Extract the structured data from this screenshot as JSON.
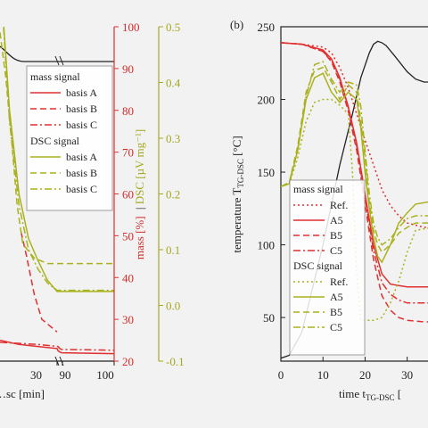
{
  "colors": {
    "black": "#222222",
    "red": "#e03030",
    "olive": "#a9b21c",
    "olive_axis": "#a4a820",
    "background": "#f2f2f2"
  },
  "chart_data": [
    {
      "type": "line",
      "panel": "left",
      "xlabel": "…sc [min]",
      "x_ticks": [
        "30",
        "90",
        "100"
      ],
      "mass_axis": {
        "ylabel": "mass [%]",
        "ylim": [
          20,
          100
        ],
        "ticks": [
          "100",
          "90",
          "80",
          "70",
          "60",
          "50",
          "40",
          "30",
          "20"
        ]
      },
      "dsc_axis": {
        "ylabel": "DSC [µV mg⁻¹]",
        "ylim": [
          -0.1,
          0.5
        ],
        "ticks": [
          "0.5",
          "0.4",
          "0.3",
          "0.2",
          "0.1",
          "0.0",
          "-0.1"
        ]
      },
      "legend": {
        "groups": [
          {
            "title": "mass signal",
            "items": [
              "basis A",
              "basis B",
              "basis C"
            ]
          },
          {
            "title": "DSC signal",
            "items": [
              "basis A",
              "basis B",
              "basis C"
            ]
          }
        ]
      },
      "series": [
        {
          "name": "basis A",
          "signal": "mass",
          "x": [
            0,
            10,
            20,
            30,
            40,
            60,
            80,
            100
          ],
          "y": [
            25,
            24,
            23.5,
            23,
            22.5,
            22.2,
            22,
            21.8
          ]
        },
        {
          "name": "basis B",
          "signal": "mass",
          "x": [
            11,
            14,
            18,
            22,
            30
          ],
          "y": [
            51,
            45,
            36,
            30,
            27
          ]
        },
        {
          "name": "basis C",
          "signal": "mass",
          "x": [
            0,
            20,
            40,
            60,
            80,
            100
          ],
          "y": [
            24.5,
            24,
            23.5,
            23,
            22.8,
            22.6
          ]
        },
        {
          "name": "basis A",
          "signal": "DSC",
          "x": [
            0,
            5,
            10,
            15,
            20,
            25,
            30,
            50,
            80,
            100
          ],
          "y": [
            0.6,
            0.35,
            0.2,
            0.12,
            0.08,
            0.045,
            0.025,
            0.025,
            0.025,
            0.025
          ]
        },
        {
          "name": "basis B",
          "signal": "DSC",
          "x": [
            0,
            3,
            6,
            9,
            12,
            18,
            25,
            40,
            100
          ],
          "y": [
            0.49,
            0.41,
            0.3,
            0.18,
            0.11,
            0.085,
            0.075,
            0.075,
            0.075
          ]
        },
        {
          "name": "basis C",
          "signal": "DSC",
          "x": [
            0,
            5,
            10,
            15,
            20,
            25,
            30,
            50,
            100
          ],
          "y": [
            0.6,
            0.33,
            0.18,
            0.1,
            0.065,
            0.04,
            0.027,
            0.027,
            0.027
          ]
        }
      ]
    },
    {
      "type": "line",
      "panel": "right",
      "panel_label": "(b)",
      "xlabel": "time t",
      "xlabel_sub": "TG-DSC",
      "xlabel_tail": " [",
      "ylabel": "temperature T",
      "ylabel_sub": "TG-DSC",
      "ylabel_tail": " [°C]",
      "x_ticks": [
        "0",
        "10",
        "20",
        "30"
      ],
      "xlim": [
        0,
        36
      ],
      "y_ticks": [
        "250",
        "200",
        "150",
        "100",
        "50"
      ],
      "ylim": [
        20,
        250
      ],
      "legend": {
        "groups": [
          {
            "title": "mass signal",
            "items": [
              "Ref.",
              "A5",
              "B5",
              "C5"
            ]
          },
          {
            "title": "DSC signal",
            "items": [
              "Ref.",
              "A5",
              "B5",
              "C5"
            ]
          }
        ]
      },
      "series": [
        {
          "name": "temperature",
          "x": [
            0,
            2,
            5,
            10,
            14,
            17,
            19,
            21,
            22,
            23,
            24,
            25,
            27,
            30,
            32,
            34,
            36
          ],
          "y": [
            22,
            24,
            40,
            100,
            155,
            190,
            215,
            232,
            238,
            240,
            239,
            237,
            230,
            219,
            214,
            212,
            212
          ]
        },
        {
          "name": "Ref.",
          "signal": "mass",
          "x": [
            0,
            5,
            10,
            12,
            14,
            16,
            18,
            20,
            22,
            24,
            26,
            28,
            30,
            34,
            36
          ],
          "y": [
            239,
            238,
            236,
            232,
            222,
            208,
            190,
            172,
            155,
            138,
            127,
            120,
            115,
            112,
            112
          ]
        },
        {
          "name": "A5",
          "signal": "mass",
          "x": [
            0,
            5,
            10,
            12,
            14,
            16,
            18,
            20,
            22,
            24,
            26,
            28,
            30,
            34,
            36
          ],
          "y": [
            239,
            238,
            234,
            228,
            215,
            195,
            170,
            135,
            100,
            80,
            73,
            72,
            71,
            71,
            71
          ]
        },
        {
          "name": "B5",
          "signal": "mass",
          "x": [
            0,
            5,
            10,
            12,
            14,
            16,
            18,
            20,
            22,
            24,
            26,
            28,
            30,
            34,
            36
          ],
          "y": [
            239,
            238,
            233,
            226,
            212,
            192,
            165,
            128,
            90,
            65,
            55,
            50,
            48,
            47,
            47
          ]
        },
        {
          "name": "C5",
          "signal": "mass",
          "x": [
            0,
            5,
            10,
            12,
            14,
            16,
            18,
            20,
            22,
            24,
            26,
            28,
            30,
            34,
            36
          ],
          "y": [
            239,
            238,
            233,
            227,
            214,
            194,
            168,
            132,
            96,
            74,
            66,
            62,
            60,
            60,
            60
          ]
        },
        {
          "name": "Ref.",
          "signal": "DSC",
          "x": [
            0,
            2,
            4,
            6,
            8,
            10,
            12,
            14,
            16,
            17,
            18,
            19,
            20,
            22,
            24,
            26,
            28,
            30,
            32,
            36
          ],
          "y": [
            140,
            142,
            160,
            185,
            198,
            200,
            200,
            196,
            190,
            150,
            80,
            48,
            48,
            48,
            50,
            60,
            75,
            95,
            110,
            112
          ]
        },
        {
          "name": "A5",
          "signal": "DSC",
          "x": [
            0,
            2,
            4,
            6,
            8,
            10,
            12,
            14,
            16,
            18,
            19,
            20,
            21,
            22,
            23,
            24,
            26,
            28,
            30,
            32,
            36
          ],
          "y": [
            140,
            142,
            165,
            200,
            215,
            218,
            205,
            198,
            205,
            200,
            180,
            150,
            125,
            105,
            92,
            88,
            100,
            115,
            122,
            128,
            130
          ]
        },
        {
          "name": "B5",
          "signal": "DSC",
          "x": [
            0,
            2,
            4,
            6,
            8,
            10,
            12,
            14,
            16,
            18,
            19,
            20,
            21,
            22,
            23,
            24,
            26,
            28,
            30,
            32,
            36
          ],
          "y": [
            140,
            143,
            168,
            205,
            220,
            222,
            212,
            200,
            210,
            205,
            185,
            160,
            130,
            110,
            100,
            95,
            100,
            108,
            112,
            115,
            115
          ]
        },
        {
          "name": "C5",
          "signal": "DSC",
          "x": [
            0,
            2,
            4,
            6,
            8,
            10,
            12,
            14,
            16,
            18,
            19,
            20,
            21,
            22,
            23,
            24,
            26,
            28,
            30,
            32,
            36
          ],
          "y": [
            140,
            143,
            166,
            202,
            224,
            226,
            214,
            205,
            212,
            210,
            195,
            165,
            135,
            115,
            105,
            100,
            104,
            112,
            118,
            120,
            120
          ]
        }
      ]
    }
  ]
}
